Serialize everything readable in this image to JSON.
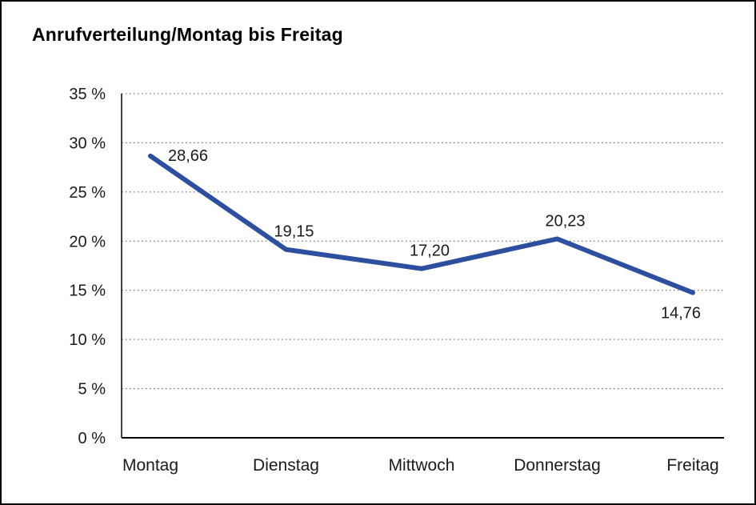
{
  "window": {
    "background_color": "#ffffff",
    "border_color": "#000000"
  },
  "chart_data": {
    "type": "line",
    "title": "Anrufverteilung/Montag bis Freitag",
    "categories": [
      "Montag",
      "Dienstag",
      "Mittwoch",
      "Donnerstag",
      "Freitag"
    ],
    "values": [
      28.66,
      19.15,
      17.2,
      20.23,
      14.76
    ],
    "value_labels": [
      "28,66",
      "19,15",
      "17,20",
      "20,23",
      "14,76"
    ],
    "label_positions": [
      "right",
      "above",
      "above",
      "above",
      "below"
    ],
    "xlabel": "",
    "ylabel": "",
    "ylim": [
      0,
      35
    ],
    "yticks": [
      0,
      5,
      10,
      15,
      20,
      25,
      30,
      35
    ],
    "ytick_labels": [
      "0 %",
      "5 %",
      "10 %",
      "15 %",
      "20 %",
      "25 %",
      "30 %",
      "35 %"
    ],
    "grid": "dotted-horizontal",
    "legend": "none",
    "series_color": "#2E4F9E",
    "axis_color": "#000000",
    "gridline_color": "#555555",
    "text_color": "#1a1a1a"
  }
}
